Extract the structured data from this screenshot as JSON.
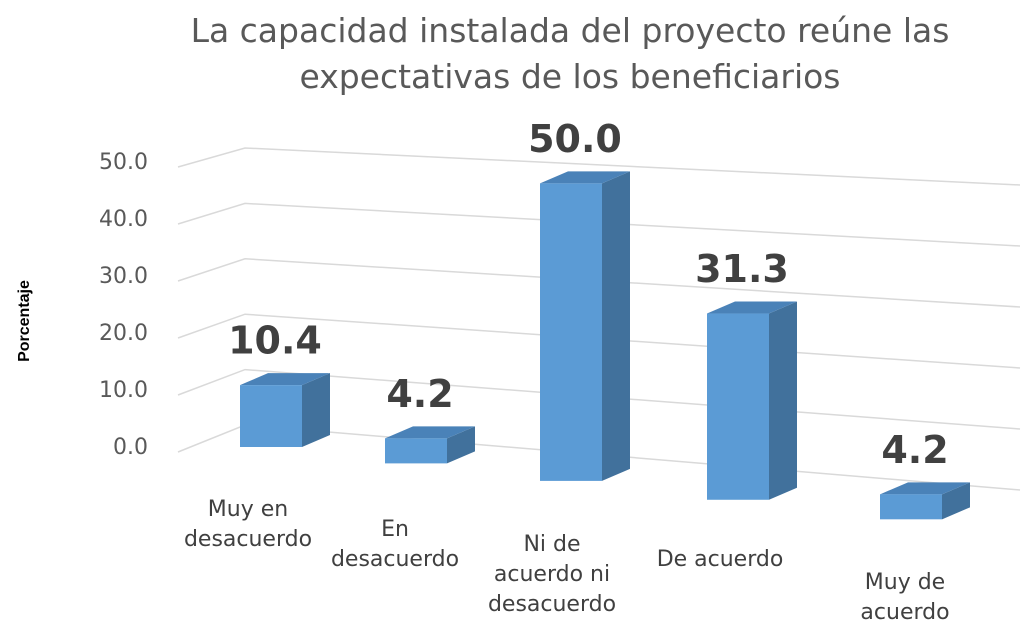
{
  "chart_data": {
    "type": "bar3d",
    "title": "La capacidad instalada del proyecto reúne las expectativas de los beneficiarios",
    "ylabel": "Porcentaje",
    "categories": [
      "Muy en desacuerdo",
      "En desacuerdo",
      "Ni de acuerdo ni desacuerdo",
      "De acuerdo",
      "Muy de acuerdo"
    ],
    "values": [
      10.4,
      4.2,
      50.0,
      31.3,
      4.2
    ],
    "value_labels": [
      "10.4",
      "4.2",
      "50.0",
      "31.3",
      "4.2"
    ],
    "color": "#5b9bd5",
    "ylim": [
      0,
      50
    ],
    "yticks": [
      {
        "value": 0,
        "label": "0.0"
      },
      {
        "value": 10,
        "label": "10.0"
      },
      {
        "value": 20,
        "label": "20.0"
      },
      {
        "value": 30,
        "label": "30.0"
      },
      {
        "value": 40,
        "label": "40.0"
      },
      {
        "value": 50,
        "label": "50.0"
      }
    ],
    "grid": true
  }
}
